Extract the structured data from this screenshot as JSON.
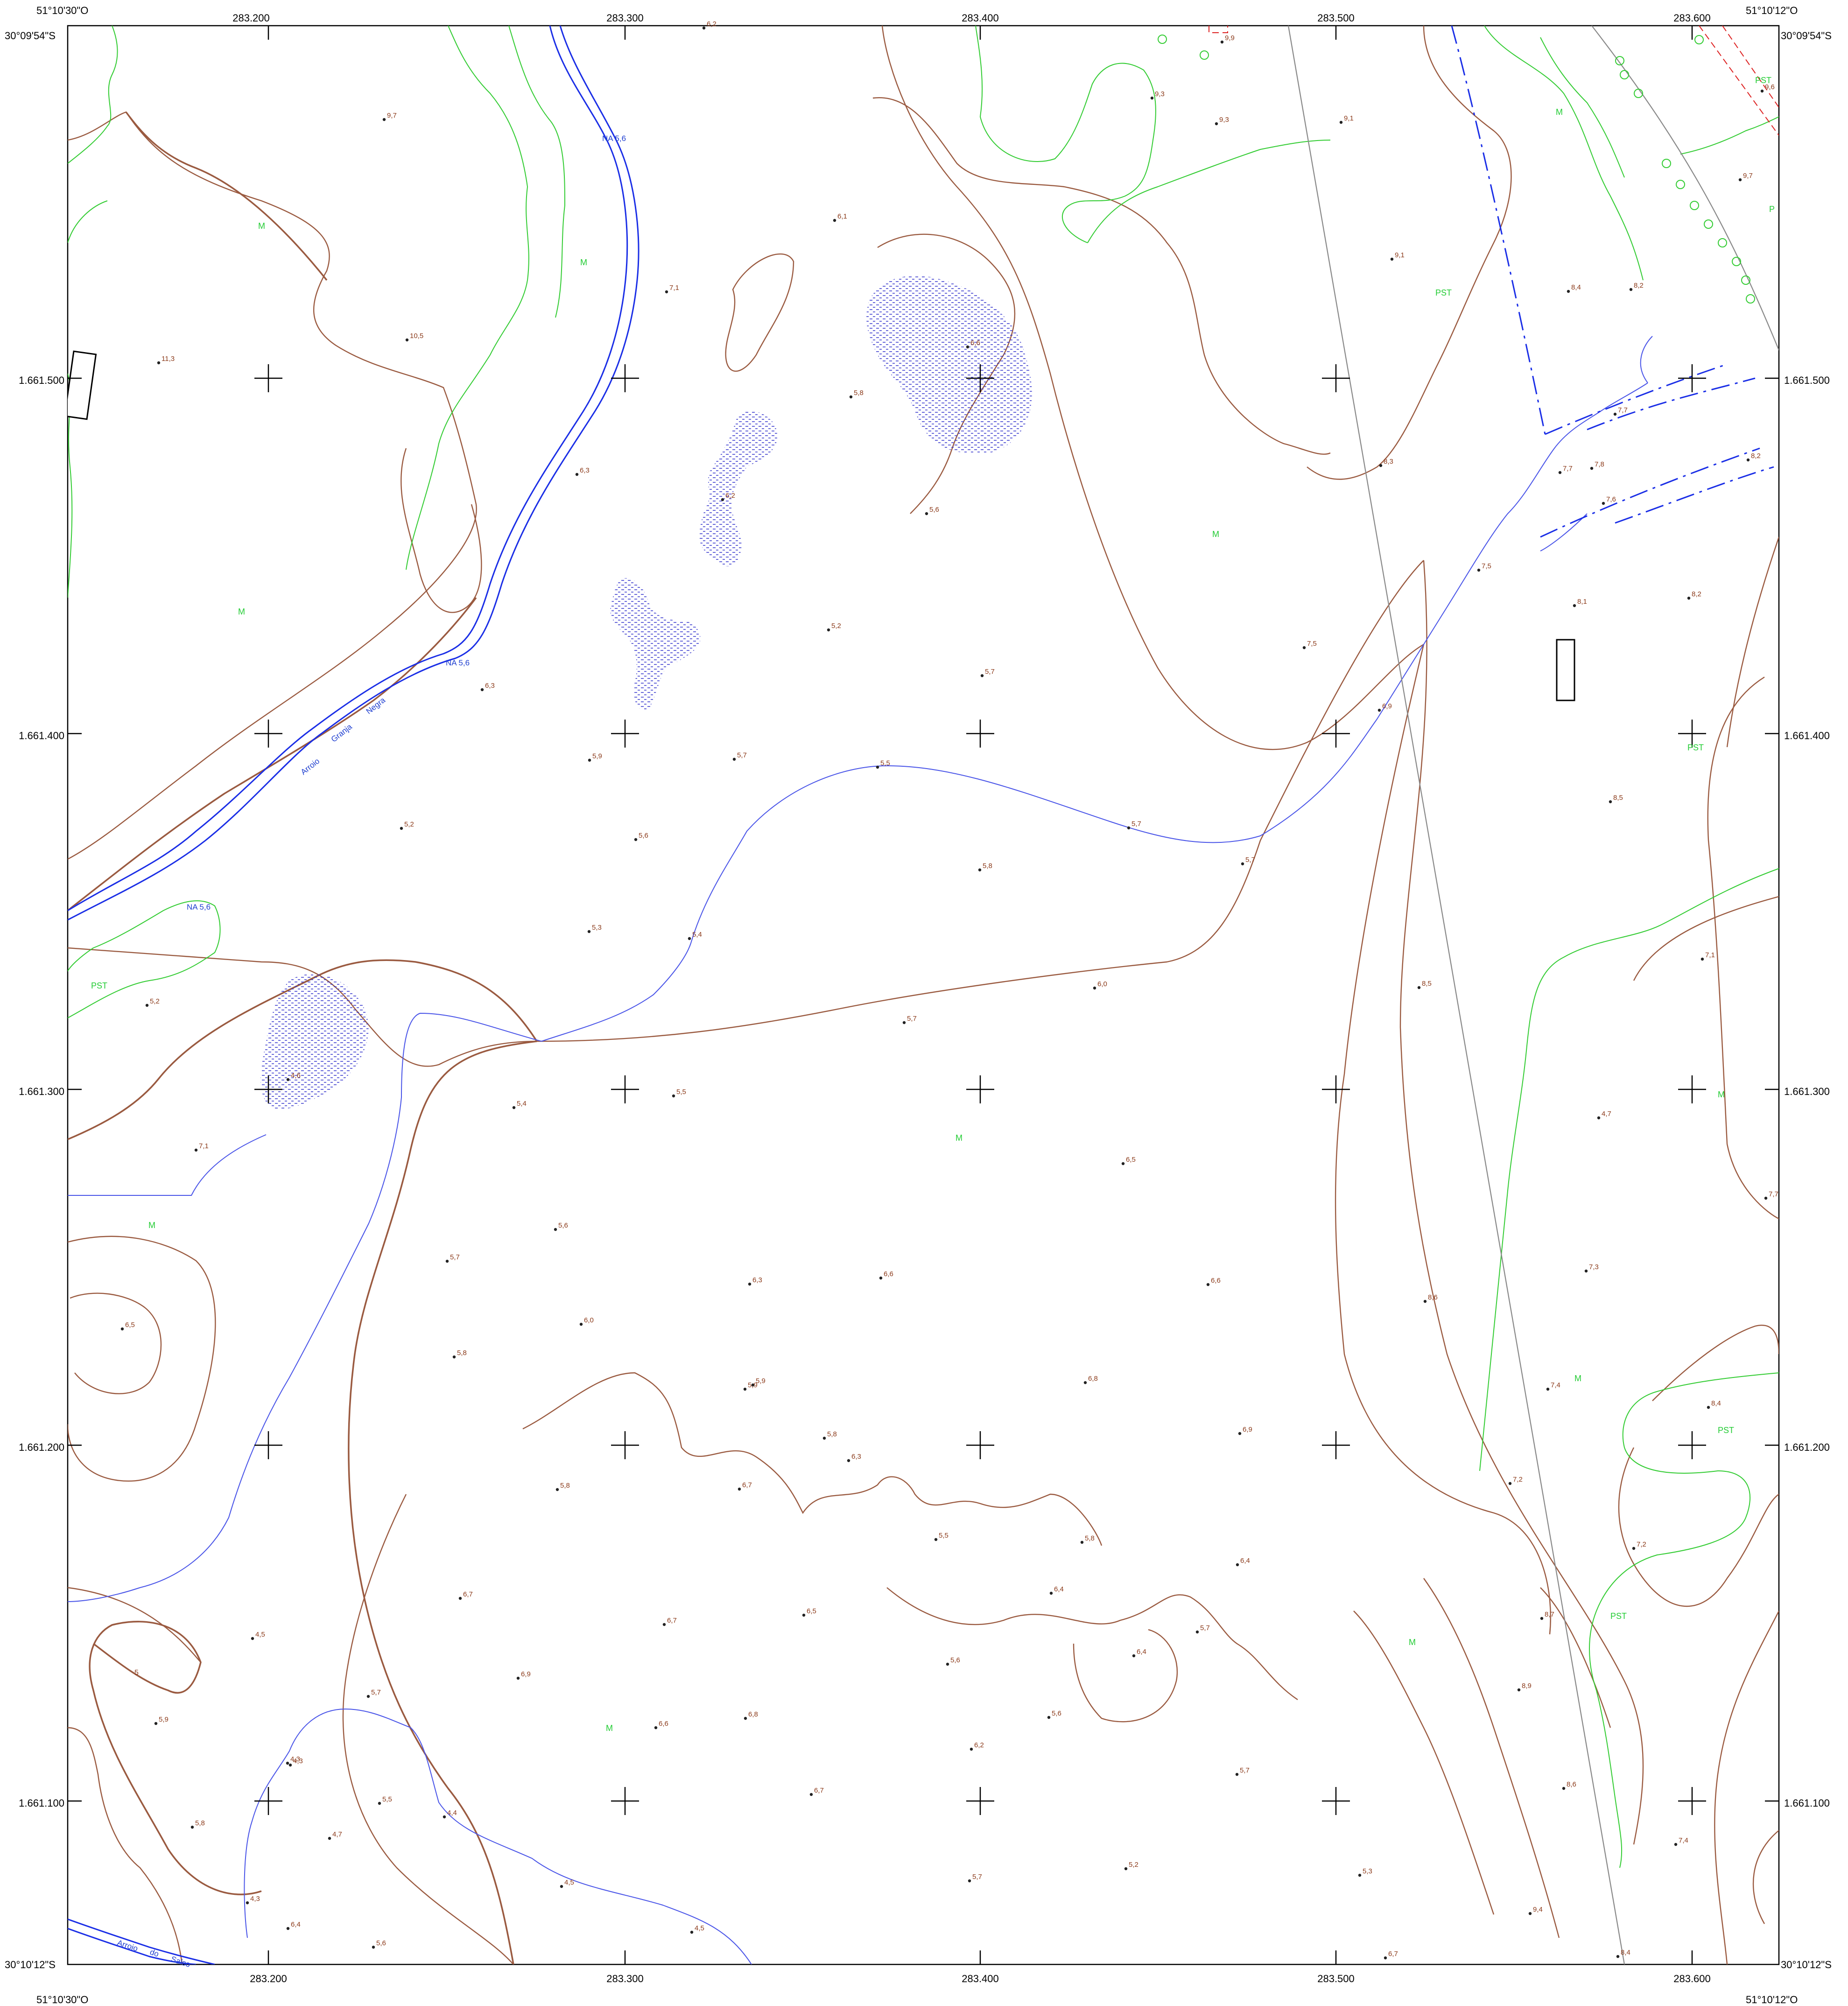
{
  "map": {
    "corners": {
      "top_left_lon": "51°10'30\"O",
      "top_left_lat": "30°09'54\"S",
      "top_right_lon": "51°10'12\"O",
      "top_right_lat": "30°09'54\"S",
      "bottom_left_lat": "30°10'12\"S",
      "bottom_left_lon": "51°10'30\"O",
      "bottom_right_lat": "30°10'12\"S",
      "bottom_right_lon": "51°10'12\"O"
    },
    "easting_labels": [
      "283.200",
      "283.300",
      "283.400",
      "283.500",
      "283.600"
    ],
    "northing_labels": [
      "1.661.500",
      "1.661.400",
      "1.661.300",
      "1.661.200",
      "1.661.100"
    ],
    "water_labels": {
      "na_top": "NA 5,6",
      "na_mid": "NA 5,6",
      "na_low": "NA 5,6",
      "stream_upper": [
        "Arroio",
        "Granja",
        "Negra"
      ],
      "stream_lower": [
        "Arroio",
        "do",
        "Salso"
      ]
    },
    "contour_label": "5",
    "vegetation_labels": [
      "M",
      "M",
      "M",
      "M",
      "M",
      "M",
      "M",
      "M",
      "M",
      "M",
      "PST",
      "PST",
      "PST",
      "PST",
      "PST",
      "P"
    ],
    "spot_heights": [
      "6,2",
      "9,9",
      "9,7",
      "9,3",
      "9,3",
      "9,1",
      "9,6",
      "9,7",
      "6,1",
      "9,1",
      "10,5",
      "11,3",
      "7,1",
      "8,4",
      "8,2",
      "5,8",
      "6,6",
      "7,7",
      "6,3",
      "5,6",
      "8,3",
      "7,7",
      "7,8",
      "8,2",
      "6,2",
      "7,6",
      "7,5",
      "8,1",
      "8,2",
      "5,2",
      "7,5",
      "5,7",
      "6,3",
      "6,9",
      "5,9",
      "5,7",
      "5,5",
      "8,5",
      "5,2",
      "5,6",
      "5,7",
      "5,8",
      "5,7",
      "5,3",
      "5,4",
      "7,1",
      "5,2",
      "6,0",
      "5,7",
      "8,5",
      "5,4",
      "5,5",
      "4,6",
      "7,1",
      "6,5",
      "4,7",
      "5,6",
      "5,7",
      "6,3",
      "6,6",
      "6,6",
      "7,3",
      "6,0",
      "8,6",
      "6,5",
      "5,8",
      "6,8",
      "5,9",
      "7,4",
      "8,4",
      "5,8",
      "6,9",
      "6,3",
      "5,8",
      "6,7",
      "7,2",
      "5,5",
      "5,8",
      "6,4",
      "7,2",
      "6,7",
      "6,4",
      "6,7",
      "6,5",
      "8,7",
      "4,5",
      "5,6",
      "6,4",
      "5,7",
      "5,7",
      "6,9",
      "8,9",
      "5,9",
      "6,8",
      "6,6",
      "5,6",
      "6,2",
      "4,3",
      "6,7",
      "5,5",
      "4,4",
      "5,7",
      "8,6",
      "5,8",
      "4,7",
      "7,4",
      "4,5",
      "5,7",
      "5,2",
      "5,3",
      "4,3",
      "6,4",
      "4,5",
      "5,6",
      "9,4",
      "6,7",
      "8,4",
      "7,7",
      "4,3",
      "5,9"
    ]
  }
}
